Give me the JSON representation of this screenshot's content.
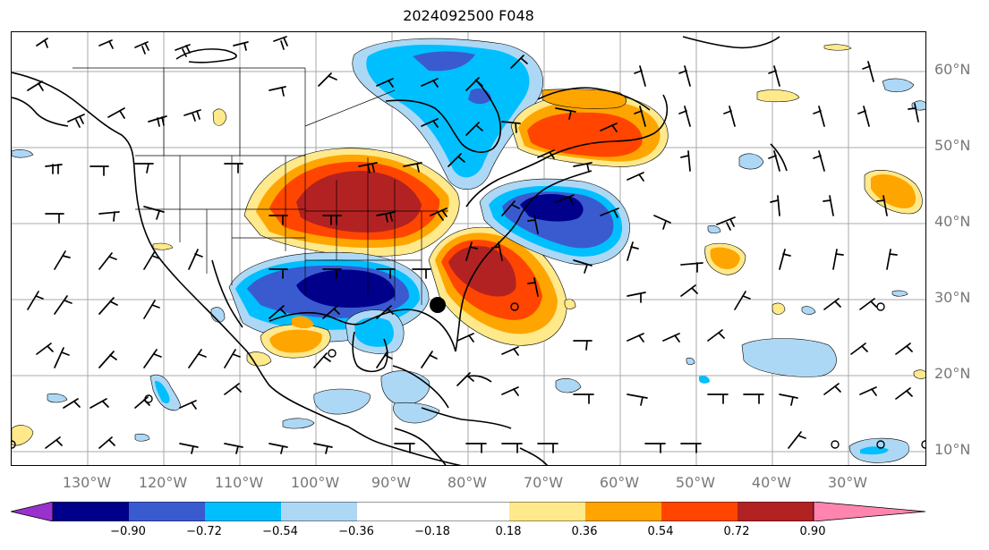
{
  "title": "2024092500 F048",
  "lat_labels": [
    "60°N",
    "50°N",
    "40°N",
    "30°N",
    "20°N",
    "10°N"
  ],
  "lon_labels": [
    "130°W",
    "120°W",
    "110°W",
    "100°W",
    "90°W",
    "80°W",
    "70°W",
    "60°W",
    "50°W",
    "40°W",
    "30°W"
  ],
  "colorbar": {
    "ticks": [
      "−0.90",
      "−0.72",
      "−0.54",
      "−0.36",
      "−0.18",
      "0.18",
      "0.36",
      "0.54",
      "0.72",
      "0.90"
    ],
    "colors": [
      "#9932cc",
      "#00008b",
      "#3a5bd0",
      "#00bfff",
      "#add8f5",
      "#ffffff",
      "#ffe98a",
      "#ffa500",
      "#ff4500",
      "#b22222",
      "#ff85b0"
    ]
  },
  "fields": {
    "positive_color": "#b22222",
    "negative_color": "#00008b"
  }
}
